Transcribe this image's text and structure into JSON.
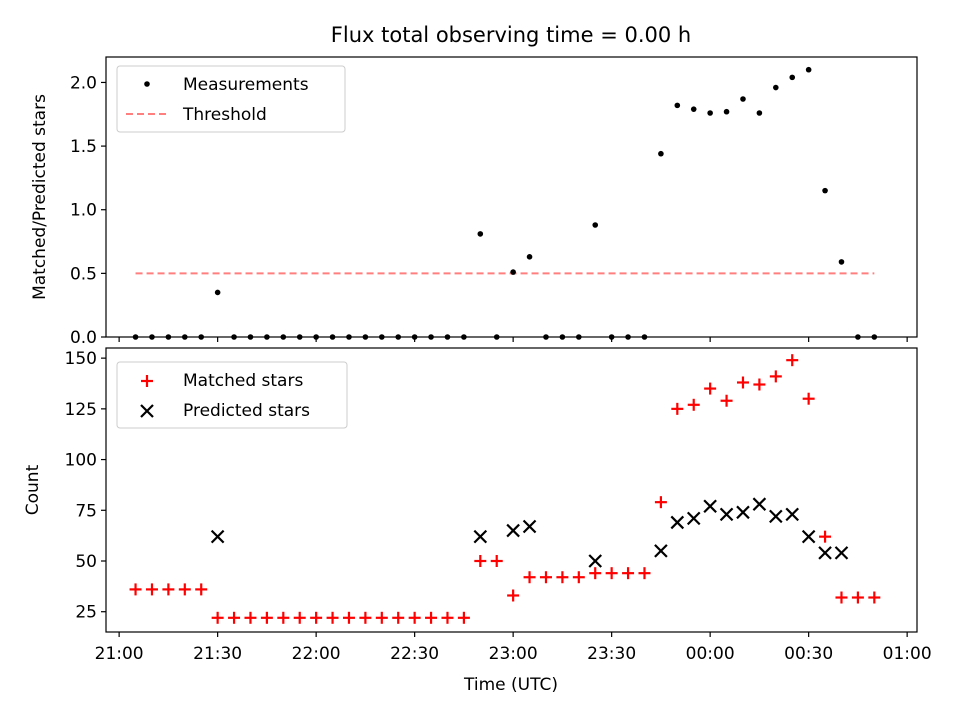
{
  "chart_data": [
    {
      "type": "scatter",
      "title": "Flux total observing time = 0.00 h",
      "xlabel": "",
      "ylabel": "Matched/Predicted stars",
      "ylim": [
        0,
        2.2
      ],
      "yticks": [
        "0.0",
        "0.5",
        "1.0",
        "1.5",
        "2.0"
      ],
      "ytick_values": [
        0,
        0.5,
        1.0,
        1.5,
        2.0
      ],
      "legend_position": "upper-left",
      "series": [
        {
          "name": "Measurements",
          "marker": "dot",
          "color": "#000000",
          "x": [
            "21:05",
            "21:10",
            "21:15",
            "21:20",
            "21:25",
            "21:30",
            "21:35",
            "21:40",
            "21:45",
            "21:50",
            "21:55",
            "22:00",
            "22:05",
            "22:10",
            "22:15",
            "22:20",
            "22:25",
            "22:30",
            "22:35",
            "22:40",
            "22:45",
            "22:50",
            "22:55",
            "23:00",
            "23:05",
            "23:10",
            "23:15",
            "23:20",
            "23:25",
            "23:30",
            "23:35",
            "23:40",
            "23:45",
            "23:50",
            "23:55",
            "00:00",
            "00:05",
            "00:10",
            "00:15",
            "00:20",
            "00:25",
            "00:30",
            "00:35",
            "00:40",
            "00:45",
            "00:50"
          ],
          "y": [
            0,
            0,
            0,
            0,
            0,
            0.35,
            0,
            0,
            0,
            0,
            0,
            0,
            0,
            0,
            0,
            0,
            0,
            0,
            0,
            0,
            0,
            0.81,
            0,
            0.51,
            0.63,
            0,
            0,
            0,
            0.88,
            0,
            0,
            0,
            1.44,
            1.82,
            1.79,
            1.76,
            1.77,
            1.87,
            1.76,
            1.96,
            2.04,
            2.1,
            1.15,
            0.59,
            0,
            0
          ]
        },
        {
          "name": "Threshold",
          "marker": "dashed-line",
          "color": "#ff7f7f",
          "x": [
            "21:05",
            "00:50"
          ],
          "y": [
            0.5,
            0.5
          ]
        }
      ]
    },
    {
      "type": "scatter",
      "title": "",
      "xlabel": "Time (UTC)",
      "ylabel": "Count",
      "ylim": [
        15,
        155
      ],
      "yticks": [
        "25",
        "50",
        "75",
        "100",
        "125",
        "150"
      ],
      "ytick_values": [
        25,
        50,
        75,
        100,
        125,
        150
      ],
      "xticks": [
        "21:00",
        "21:30",
        "22:00",
        "22:30",
        "23:00",
        "23:30",
        "00:00",
        "00:30",
        "01:00"
      ],
      "xlim": [
        "20:56",
        "01:03"
      ],
      "legend_position": "upper-left",
      "series": [
        {
          "name": "Matched stars",
          "marker": "plus",
          "color": "#ff0000",
          "x": [
            "21:05",
            "21:10",
            "21:15",
            "21:20",
            "21:25",
            "21:30",
            "21:35",
            "21:40",
            "21:45",
            "21:50",
            "21:55",
            "22:00",
            "22:05",
            "22:10",
            "22:15",
            "22:20",
            "22:25",
            "22:30",
            "22:35",
            "22:40",
            "22:45",
            "22:50",
            "22:55",
            "23:00",
            "23:05",
            "23:10",
            "23:15",
            "23:20",
            "23:25",
            "23:30",
            "23:35",
            "23:40",
            "23:45",
            "23:50",
            "23:55",
            "00:00",
            "00:05",
            "00:10",
            "00:15",
            "00:20",
            "00:25",
            "00:30",
            "00:35",
            "00:40",
            "00:45",
            "00:50"
          ],
          "y": [
            36,
            36,
            36,
            36,
            36,
            22,
            22,
            22,
            22,
            22,
            22,
            22,
            22,
            22,
            22,
            22,
            22,
            22,
            22,
            22,
            22,
            50,
            50,
            33,
            42,
            42,
            42,
            42,
            44,
            44,
            44,
            44,
            79,
            125,
            127,
            135,
            129,
            138,
            137,
            141,
            149,
            130,
            62,
            32,
            32,
            32
          ]
        },
        {
          "name": "Predicted stars",
          "marker": "x",
          "color": "#000000",
          "x": [
            "21:30",
            "22:50",
            "23:00",
            "23:05",
            "23:25",
            "23:45",
            "23:50",
            "23:55",
            "00:00",
            "00:05",
            "00:10",
            "00:15",
            "00:20",
            "00:25",
            "00:30",
            "00:35",
            "00:40"
          ],
          "y": [
            62,
            62,
            65,
            67,
            50,
            55,
            69,
            71,
            77,
            73,
            74,
            78,
            72,
            73,
            62,
            54,
            54
          ]
        }
      ]
    }
  ]
}
